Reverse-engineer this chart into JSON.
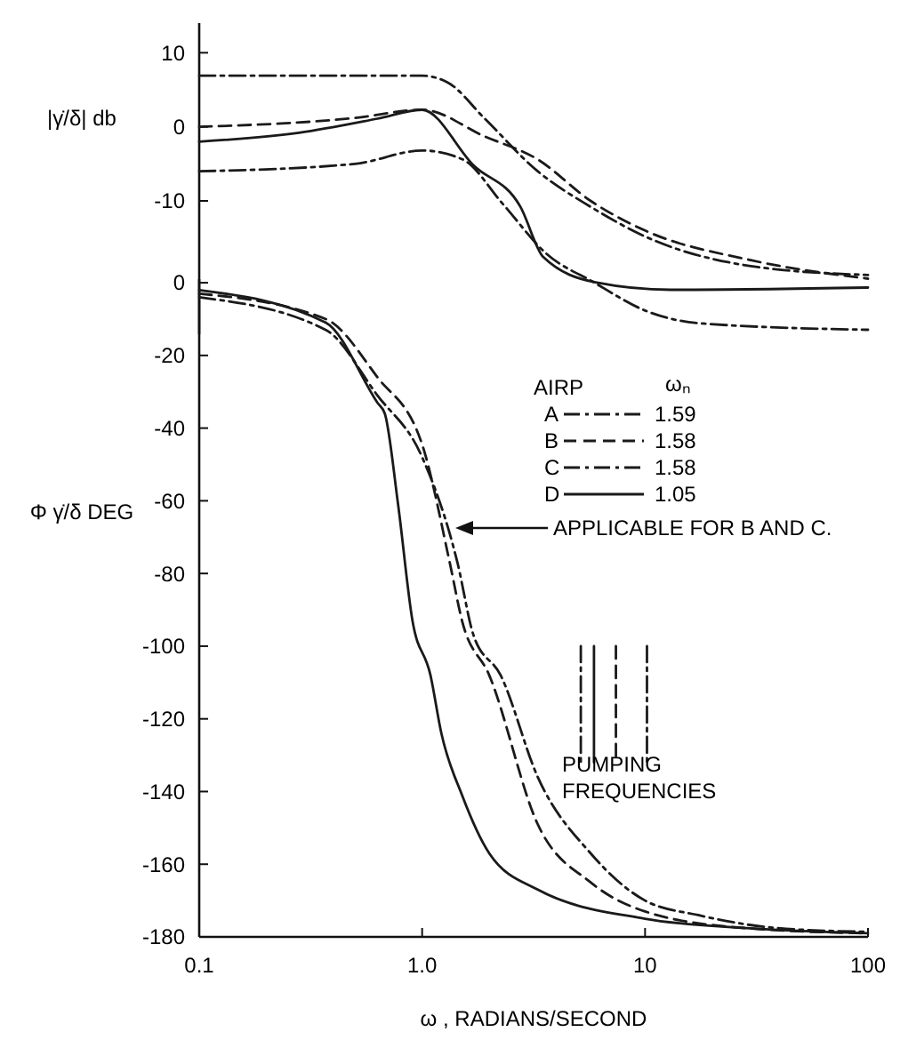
{
  "chart_data": [
    {
      "type": "line",
      "ylabel": "|γ̇/δ| db",
      "log": "x",
      "xlim": [
        0.1,
        100
      ],
      "ylim": [
        -28,
        14
      ],
      "yticks": [
        10,
        0,
        -10
      ],
      "tick_labels": "y",
      "grid": false,
      "legend": "bottom right",
      "legend_title": "AIRP",
      "annotations": [
        "ωₙ",
        "1.59",
        "1.58",
        "1.58",
        "1.05"
      ],
      "series": [
        {
          "name": "A",
          "color": "#1a1a1a",
          "line_style": "dashdot",
          "x": [
            0.1,
            0.5,
            1.0,
            1.3,
            1.91,
            3.3,
            5.7,
            10,
            29.8,
            100
          ],
          "values": [
            6.9,
            6.9,
            6.9,
            6.0,
            1.1,
            -6,
            -10.8,
            -14.8,
            -18.8,
            -20
          ]
        },
        {
          "name": "B",
          "color": "#1a1a1a",
          "line_style": "dashed",
          "x": [
            0.1,
            0.5,
            1.0,
            1.91,
            3.3,
            5.7,
            10,
            29.8,
            100
          ],
          "values": [
            0,
            1.2,
            2.3,
            -1.3,
            -4.4,
            -10,
            -14,
            -18,
            -20.5
          ]
        },
        {
          "name": "C",
          "color": "#1a1a1a",
          "line_style": "dashdot",
          "x": [
            0.1,
            0.5,
            1.0,
            1.52,
            2.3,
            3.6,
            5.9,
            10,
            17.3,
            100
          ],
          "values": [
            -6,
            -5,
            -3.2,
            -4.4,
            -10.4,
            -17.1,
            -21,
            -24.8,
            -26.5,
            -27.4
          ]
        },
        {
          "name": "D",
          "color": "#1a1a1a",
          "line_style": "solid",
          "x": [
            0.1,
            0.28,
            0.63,
            1.0,
            1.7,
            2.76,
            3.5,
            6.0,
            13,
            100
          ],
          "values": [
            -2,
            -0.8,
            1.1,
            2.3,
            -5.2,
            -10.8,
            -17.6,
            -21,
            -22,
            -21.7
          ]
        }
      ]
    },
    {
      "type": "line",
      "ylabel": "Φ γ̇/δ DEG",
      "xlabel": "ω , RADIANS/SECOND",
      "log": "x",
      "xlim": [
        0.1,
        100
      ],
      "ylim": [
        -180,
        1
      ],
      "xticks": [
        {
          "value": 0.1,
          "label": "0.1"
        },
        {
          "value": 1,
          "label": "1.0"
        },
        10,
        100
      ],
      "yticks": [
        0,
        -20,
        -40,
        -60,
        -80,
        -100,
        -120,
        -140,
        -160,
        -180
      ],
      "grid": false,
      "annotations": [
        "APPLICABLE FOR B AND C.",
        "PUMPING FREQUENCIES"
      ],
      "series": [
        {
          "color": "#1a1a1a",
          "line_style": "dashdot",
          "x": [
            0.1,
            0.37,
            0.63,
            1.0,
            1.44,
            1.7,
            2.25,
            3.3,
            5.7,
            10,
            17.3,
            39.6,
            100
          ],
          "values": [
            -4,
            -13,
            -31,
            -48,
            -77,
            -97,
            -108,
            -136,
            -157,
            -170,
            -174,
            -177.6,
            -178.6
          ]
        },
        {
          "color": "#1a1a1a",
          "line_style": "dashed",
          "x": [
            0.1,
            0.37,
            0.63,
            1.0,
            1.33,
            1.51,
            2.0,
            3.3,
            5.7,
            10,
            28.5,
            100
          ],
          "values": [
            -3,
            -10,
            -26,
            -44.5,
            -77,
            -93,
            -108,
            -149,
            -165,
            -173,
            -177.6,
            -179
          ]
        },
        {
          "color": "#1a1a1a",
          "line_style": "solid",
          "x": [
            0.1,
            0.37,
            0.63,
            0.68,
            0.78,
            0.905,
            1.09,
            1.22,
            1.51,
            2.0,
            3.3,
            10,
            28.5,
            100
          ],
          "values": [
            -2,
            -11,
            -33,
            -36,
            -61,
            -93,
            -108,
            -124,
            -141,
            -157,
            -167,
            -175,
            -177.6,
            -179
          ]
        },
        {
          "color": "#1a1a1a",
          "line_style": "dashdot",
          "x": [
            5.15,
            5.15
          ],
          "values": [
            -100,
            -132
          ]
        },
        {
          "color": "#1a1a1a",
          "line_style": "solid",
          "x": [
            5.9,
            5.9
          ],
          "values": [
            -100,
            -132
          ]
        },
        {
          "color": "#1a1a1a",
          "line_style": "dashed",
          "x": [
            7.4,
            7.4
          ],
          "values": [
            -100,
            -132
          ]
        },
        {
          "color": "#1a1a1a",
          "line_style": "dashdot",
          "x": [
            10.2,
            10.2
          ],
          "values": [
            -100,
            -132
          ]
        }
      ]
    }
  ]
}
